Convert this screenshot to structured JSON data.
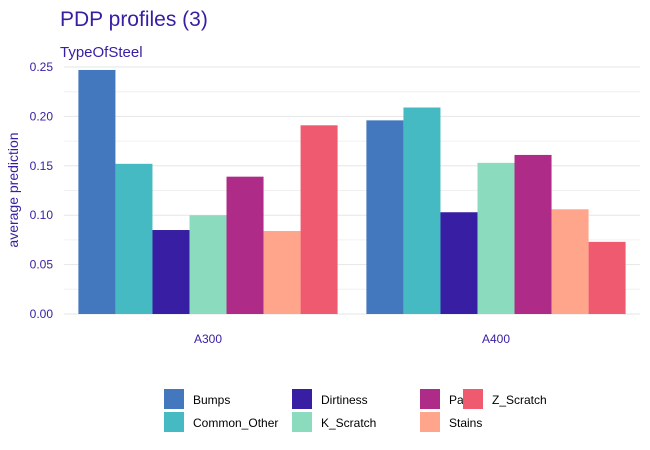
{
  "colors": {
    "Bumps": "#4378bf",
    "Common_Other": "#46bac2",
    "Dirtiness": "#371ea3",
    "K_Scratch": "#8bdcbe",
    "Pastry": "#ae2c87",
    "Stains": "#ffa58c",
    "Z_Scratch": "#f05a71"
  },
  "chart_data": {
    "type": "bar",
    "title": "PDP profiles (3)",
    "subtitle": "TypeOfSteel",
    "xlabel": "",
    "ylabel": "average prediction",
    "categories": [
      "A300",
      "A400"
    ],
    "ylim": [
      0,
      0.25
    ],
    "yticks": [
      "0.00",
      "0.05",
      "0.10",
      "0.15",
      "0.20",
      "0.25"
    ],
    "ytick_values": [
      0,
      0.05,
      0.1,
      0.15,
      0.2,
      0.25
    ],
    "legend_position": "bottom",
    "grid": true,
    "series": [
      {
        "name": "Bumps",
        "values": [
          0.247,
          0.196
        ]
      },
      {
        "name": "Common_Other",
        "values": [
          0.152,
          0.209
        ]
      },
      {
        "name": "Dirtiness",
        "values": [
          0.085,
          0.103
        ]
      },
      {
        "name": "K_Scratch",
        "values": [
          0.1,
          0.153
        ]
      },
      {
        "name": "Pastry",
        "values": [
          0.139,
          0.161
        ]
      },
      {
        "name": "Stains",
        "values": [
          0.084,
          0.106
        ]
      },
      {
        "name": "Z_Scratch",
        "values": [
          0.191,
          0.073
        ]
      }
    ],
    "legend_order": [
      "Bumps",
      "Common_Other",
      "Dirtiness",
      "K_Scratch",
      "Pastry",
      "Stains",
      "Z_Scratch"
    ]
  }
}
